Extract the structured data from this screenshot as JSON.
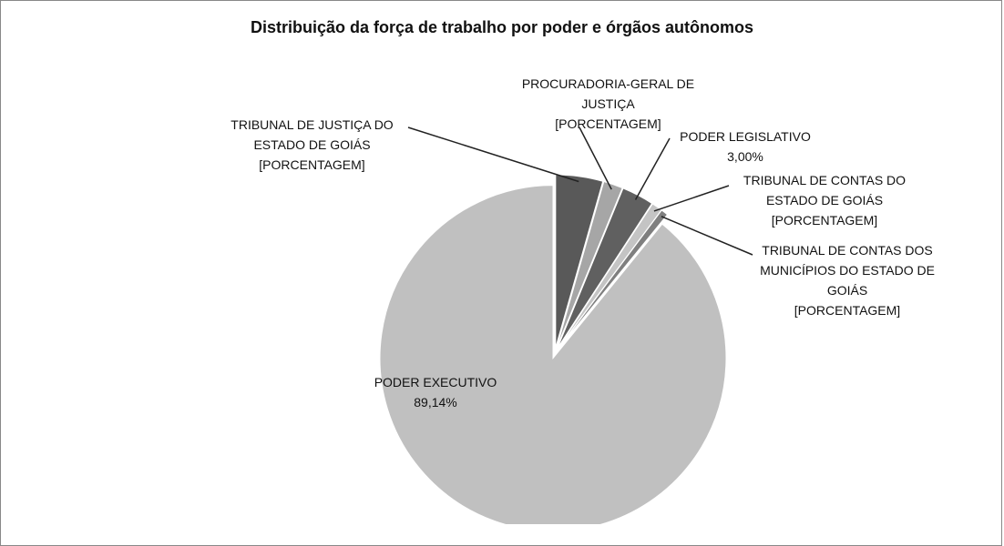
{
  "chart_data": {
    "type": "pie",
    "title": "Distribuição da força de trabalho por poder e órgãos autônomos",
    "categories": [
      "TRIBUNAL DE JUSTIÇA DO ESTADO DE GOIÁS",
      "PROCURADORIA-GERAL DE JUSTIÇA",
      "PODER LEGISLATIVO",
      "TRIBUNAL DE CONTAS DO ESTADO DE GOIÁS",
      "TRIBUNAL DE CONTAS DOS MUNICÍPIOS DO ESTADO DE GOIÁS",
      "PODER EXECUTIVO"
    ],
    "values": [
      4.4,
      1.8,
      3.0,
      1.0,
      0.66,
      89.14
    ],
    "value_labels": [
      "[PORCENTAGEM]",
      "[PORCENTAGEM]",
      "3,00%",
      "[PORCENTAGEM]",
      "[PORCENTAGEM]",
      "89,14%"
    ],
    "colors": [
      "#595959",
      "#a6a6a6",
      "#606060",
      "#c4c4c4",
      "#7f7f7f",
      "#c0c0c0"
    ]
  }
}
